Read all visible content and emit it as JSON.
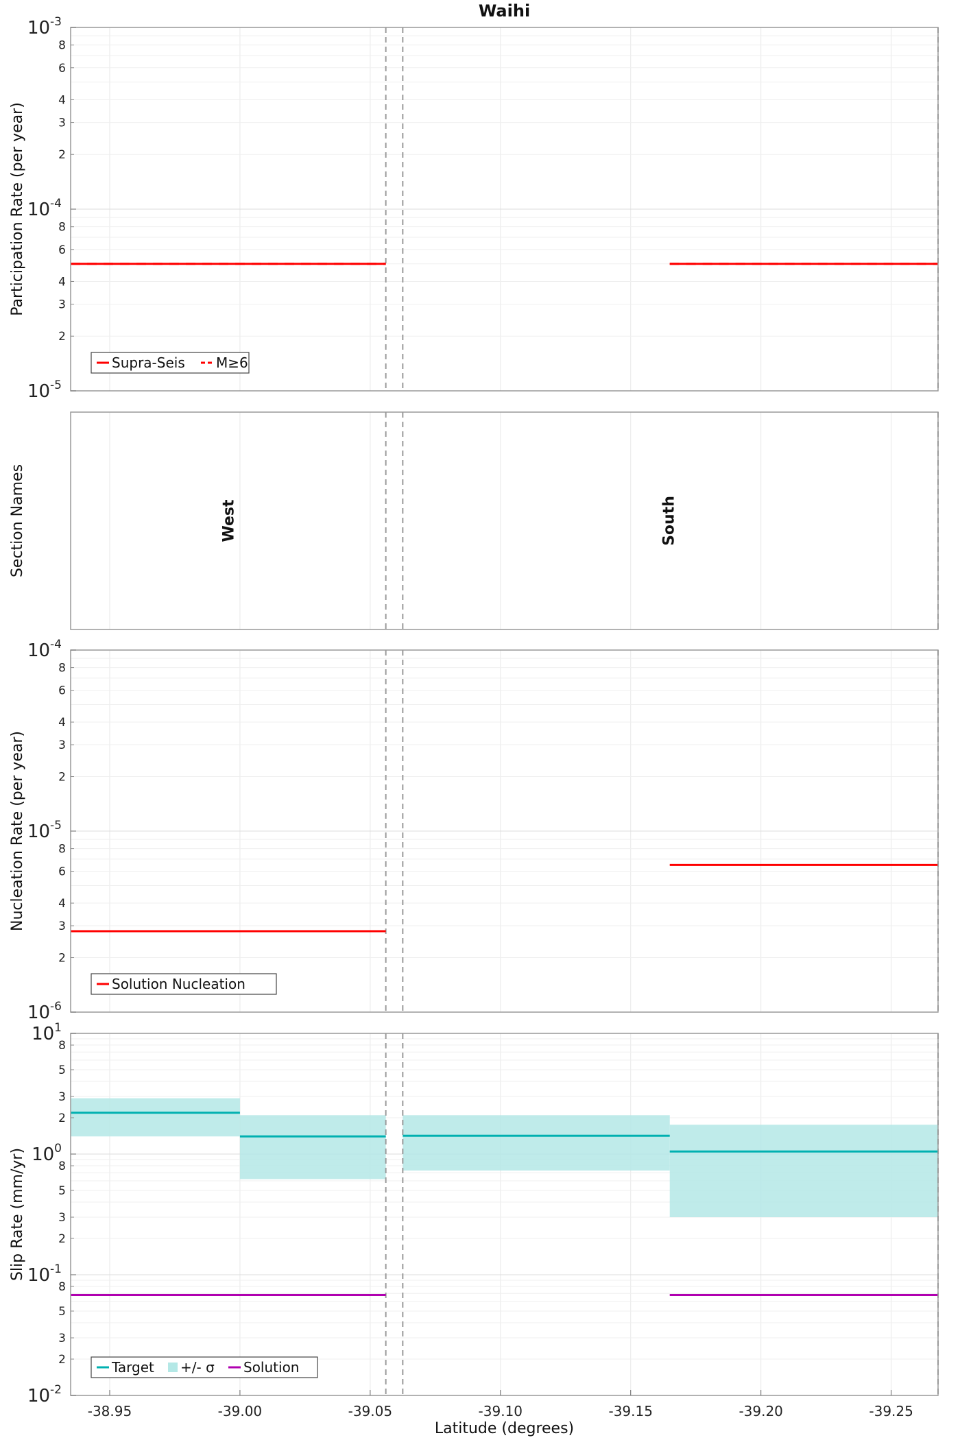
{
  "title": "Waihi",
  "chart_data": {
    "type": "line",
    "xlabel": "Latitude (degrees)",
    "xlim": [
      -38.935,
      -39.268
    ],
    "x_ticks": [
      "-38.95",
      "-39.00",
      "-39.05",
      "-39.10",
      "-39.15",
      "-39.20",
      "-39.25"
    ],
    "x_tick_values": [
      -38.95,
      -39.0,
      -39.05,
      -39.1,
      -39.15,
      -39.2,
      -39.25
    ],
    "section_boundaries": [
      -39.056,
      -39.0625,
      -39.268
    ],
    "panels": [
      {
        "ylabel": "Participation Rate (per year)",
        "yscale": "log",
        "ylim": [
          1e-05,
          0.001
        ],
        "decade_labels": [
          {
            "base": "10",
            "exp": "-3"
          },
          {
            "base": "10",
            "exp": "-4"
          },
          {
            "base": "10",
            "exp": "-5"
          }
        ],
        "minor_labels": [
          "8",
          "6",
          "4",
          "3",
          "2"
        ],
        "legend": [
          {
            "label": "Supra-Seis",
            "color": "#ff0000",
            "style": "solid"
          },
          {
            "label": "M≥6",
            "color": "#ff0000",
            "style": "dashed"
          }
        ],
        "series": [
          {
            "name": "Supra-Seis",
            "color": "#ff0000",
            "style": "solid",
            "segments": [
              [
                -38.935,
                -39.056,
                5e-05
              ],
              [
                -39.165,
                -39.268,
                5e-05
              ]
            ]
          },
          {
            "name": "M≥6",
            "color": "#ff0000",
            "style": "dashed",
            "segments": [
              [
                -38.935,
                -39.056,
                5e-05
              ],
              [
                -39.165,
                -39.268,
                5e-05
              ]
            ]
          }
        ]
      },
      {
        "ylabel": "Section Names",
        "sections": [
          {
            "name": "West",
            "x": -38.996
          },
          {
            "name": "South",
            "x": -39.165
          }
        ]
      },
      {
        "ylabel": "Nucleation Rate (per year)",
        "yscale": "log",
        "ylim": [
          1e-06,
          0.0001
        ],
        "decade_labels": [
          {
            "base": "10",
            "exp": "-4"
          },
          {
            "base": "10",
            "exp": "-5"
          },
          {
            "base": "10",
            "exp": "-6"
          }
        ],
        "minor_labels": [
          "8",
          "6",
          "4",
          "3",
          "2"
        ],
        "legend": [
          {
            "label": "Solution Nucleation",
            "color": "#ff0000",
            "style": "solid"
          }
        ],
        "series": [
          {
            "name": "Solution Nucleation",
            "color": "#ff0000",
            "style": "solid",
            "segments": [
              [
                -38.935,
                -39.056,
                2.8e-06
              ],
              [
                -39.165,
                -39.268,
                6.5e-06
              ]
            ]
          }
        ]
      },
      {
        "ylabel": "Slip Rate (mm/yr)",
        "yscale": "log",
        "ylim": [
          0.01,
          10
        ],
        "decade_labels": [
          {
            "base": "10",
            "exp": "1"
          },
          {
            "base": "10",
            "exp": "0"
          },
          {
            "base": "10",
            "exp": "-1"
          },
          {
            "base": "10",
            "exp": "-2"
          }
        ],
        "minor_labels": [
          "8",
          "5",
          "3",
          "2"
        ],
        "legend": [
          {
            "label": "Target",
            "color": "#00b0b0",
            "style": "solid"
          },
          {
            "label": "+/- σ",
            "color": "#b4e8e6",
            "style": "box"
          },
          {
            "label": "Solution",
            "color": "#b000b0",
            "style": "solid"
          }
        ],
        "bands": [
          {
            "x0": -38.935,
            "x1": -39.0,
            "low": 1.4,
            "high": 2.9
          },
          {
            "x0": -39.0,
            "x1": -39.056,
            "low": 0.62,
            "high": 2.1
          },
          {
            "x0": -39.0625,
            "x1": -39.165,
            "low": 0.73,
            "high": 2.1
          },
          {
            "x0": -39.165,
            "x1": -39.268,
            "low": 0.3,
            "high": 1.75
          }
        ],
        "series": [
          {
            "name": "Target",
            "color": "#00b0b0",
            "style": "solid",
            "segments": [
              [
                -38.935,
                -39.0,
                2.2
              ],
              [
                -39.0,
                -39.056,
                1.4
              ],
              [
                -39.0625,
                -39.165,
                1.42
              ],
              [
                -39.165,
                -39.268,
                1.05
              ]
            ]
          },
          {
            "name": "Solution",
            "color": "#b000b0",
            "style": "solid",
            "segments": [
              [
                -38.935,
                -39.056,
                0.068
              ],
              [
                -39.165,
                -39.268,
                0.068
              ]
            ]
          }
        ]
      }
    ]
  }
}
